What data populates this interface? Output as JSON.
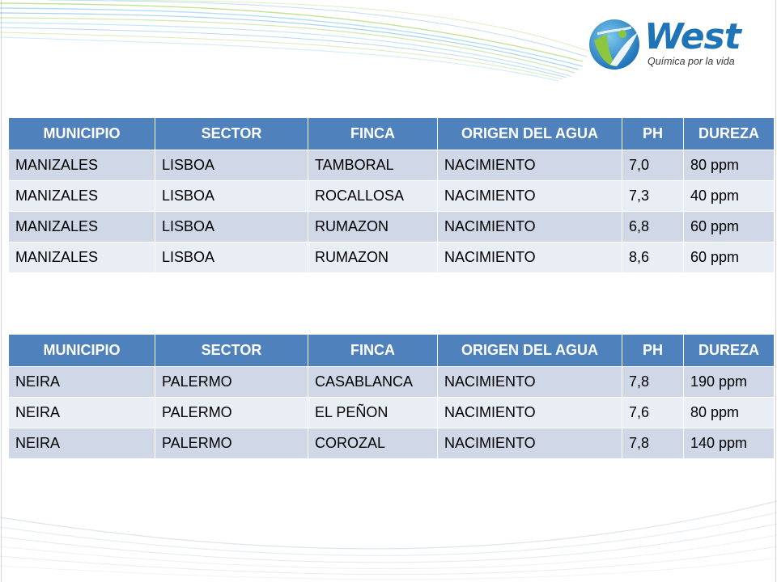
{
  "colors": {
    "header_bg": "#4f81bd",
    "header_text": "#ffffff",
    "row_dark": "#d0d8e8",
    "row_light": "#e9edf4",
    "logo_blue": "#1f74b8",
    "logo_green": "#8cc63f",
    "swoosh_blue": "#6fb4e0",
    "swoosh_green": "#a9d46c"
  },
  "logo": {
    "name": "West",
    "tagline": "Química por la vida",
    "icon": "globe-swoosh-icon"
  },
  "tables": [
    {
      "headers": [
        "MUNICIPIO",
        "SECTOR",
        "FINCA",
        "ORIGEN DEL AGUA",
        "PH",
        "DUREZA"
      ],
      "rows": [
        [
          "MANIZALES",
          "LISBOA",
          "TAMBORAL",
          "NACIMIENTO",
          "7,0",
          "80 ppm"
        ],
        [
          "MANIZALES",
          "LISBOA",
          "ROCALLOSA",
          "NACIMIENTO",
          "7,3",
          "40 ppm"
        ],
        [
          "MANIZALES",
          "LISBOA",
          "RUMAZON",
          "NACIMIENTO",
          "6,8",
          "60 ppm"
        ],
        [
          "MANIZALES",
          "LISBOA",
          "RUMAZON",
          "NACIMIENTO",
          "8,6",
          "60 ppm"
        ]
      ]
    },
    {
      "headers": [
        "MUNICIPIO",
        "SECTOR",
        "FINCA",
        "ORIGEN DEL AGUA",
        "PH",
        "DUREZA"
      ],
      "rows": [
        [
          "NEIRA",
          "PALERMO",
          "CASABLANCA",
          "NACIMIENTO",
          "7,8",
          "190 ppm"
        ],
        [
          "NEIRA",
          "PALERMO",
          "EL PEÑON",
          "NACIMIENTO",
          "7,6",
          "80 ppm"
        ],
        [
          "NEIRA",
          "PALERMO",
          "COROZAL",
          "NACIMIENTO",
          "7,8",
          "140 ppm"
        ]
      ]
    }
  ]
}
